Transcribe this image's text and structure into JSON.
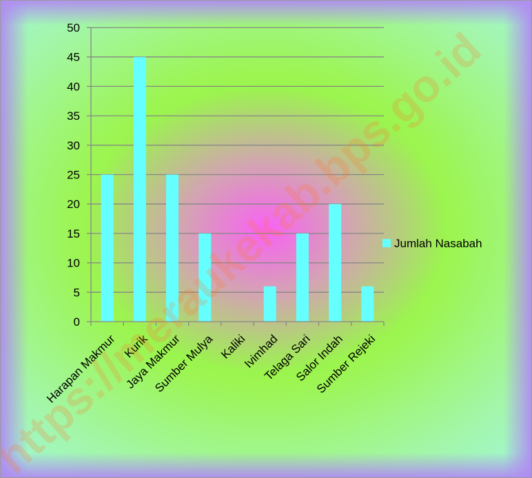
{
  "chart_data": {
    "type": "bar",
    "categories": [
      "Harapan Makmur",
      "Kurik",
      "Jaya Makmur",
      "Sumber Mulya",
      "Kaliki",
      "Ivimhad",
      "Telaga Sari",
      "Salor Indah",
      "Sumber Rejeki"
    ],
    "series": [
      {
        "name": "Jumlah Nasabah",
        "values": [
          25,
          45,
          25,
          15,
          0,
          6,
          15,
          20,
          6
        ]
      }
    ],
    "ylim": [
      0,
      50
    ],
    "yticks": [
      0,
      5,
      10,
      15,
      20,
      25,
      30,
      35,
      40,
      45,
      50
    ],
    "grid": true,
    "legend_position": "right",
    "colors": {
      "bar": "#66ffff",
      "grid": "#868686",
      "axis": "#868686"
    }
  },
  "watermark": {
    "text": "https://meraukekab.bps.go.id"
  }
}
